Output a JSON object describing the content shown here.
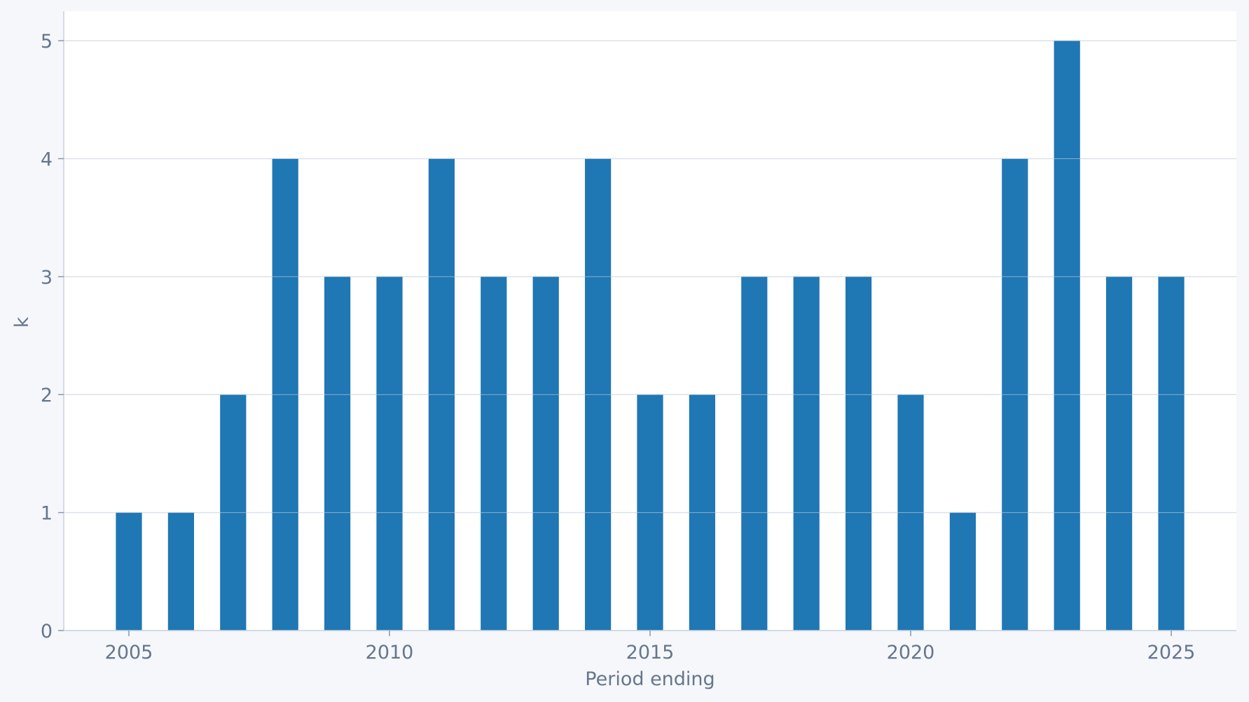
{
  "chart_data": {
    "type": "bar",
    "x": [
      2005,
      2006,
      2007,
      2008,
      2009,
      2010,
      2011,
      2012,
      2013,
      2014,
      2015,
      2016,
      2017,
      2018,
      2019,
      2020,
      2021,
      2022,
      2023,
      2024,
      2025
    ],
    "values": [
      1,
      1,
      2,
      4,
      3,
      3,
      4,
      3,
      3,
      4,
      2,
      2,
      3,
      3,
      3,
      2,
      1,
      4,
      5,
      3,
      3
    ],
    "xlabel": "Period ending",
    "ylabel": "k",
    "xlim": [
      2003.75,
      2026.25
    ],
    "ylim": [
      0,
      5.25
    ],
    "x_ticks": [
      2005,
      2010,
      2015,
      2020,
      2025
    ],
    "y_ticks": [
      0,
      1,
      2,
      3,
      4,
      5
    ],
    "grid": "horizontal",
    "colors": {
      "bar": "#1f77b4",
      "grid": "#dde2ea",
      "axis": "#c9d0dc",
      "text": "#66768c",
      "plot_background": "#ffffff",
      "page_background": "#f5f7fb"
    }
  }
}
